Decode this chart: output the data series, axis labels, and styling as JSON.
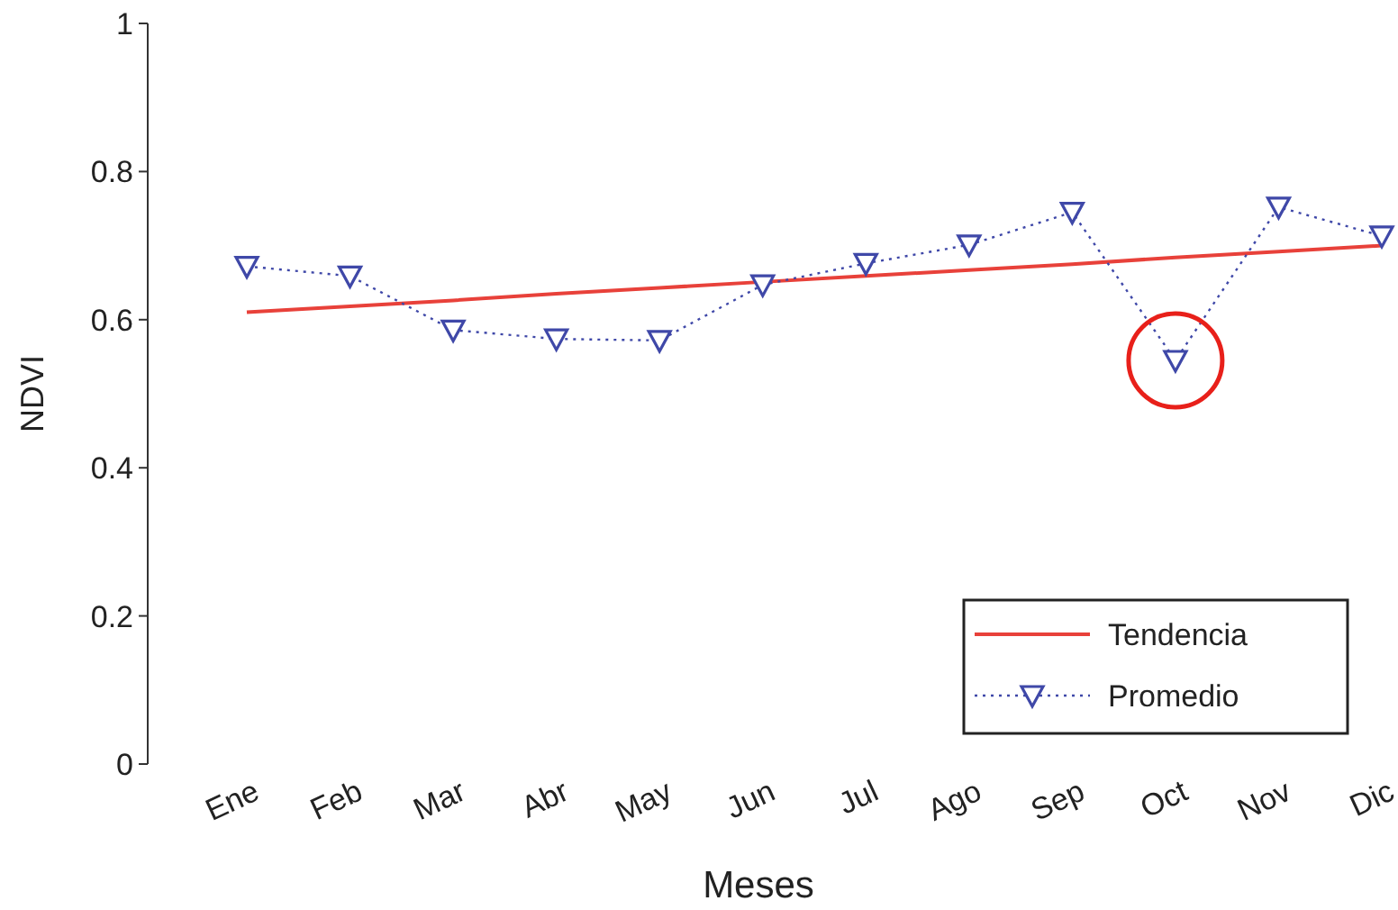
{
  "chart_data": {
    "type": "line",
    "xlabel": "Meses",
    "ylabel": "NDVI",
    "categories": [
      "Ene",
      "Feb",
      "Mar",
      "Abr",
      "May",
      "Jun",
      "Jul",
      "Ago",
      "Sep",
      "Oct",
      "Nov",
      "Dic"
    ],
    "series": [
      {
        "name": "Tendencia",
        "color": "#e8413a",
        "values": [
          0.61,
          0.618,
          0.626,
          0.635,
          0.643,
          0.651,
          0.659,
          0.667,
          0.675,
          0.684,
          0.692,
          0.7
        ],
        "line_style": "solid",
        "marker": "none"
      },
      {
        "name": "Promedio",
        "color": "#3f48a8",
        "values": [
          0.672,
          0.659,
          0.586,
          0.574,
          0.572,
          0.647,
          0.676,
          0.701,
          0.745,
          0.545,
          0.752,
          0.713
        ],
        "line_style": "dotted",
        "marker": "triangle"
      }
    ],
    "ylim": [
      0,
      1
    ],
    "yticks": [
      0,
      0.2,
      0.4,
      0.6,
      0.8,
      1
    ],
    "grid": false,
    "legend": "bottom right"
  }
}
